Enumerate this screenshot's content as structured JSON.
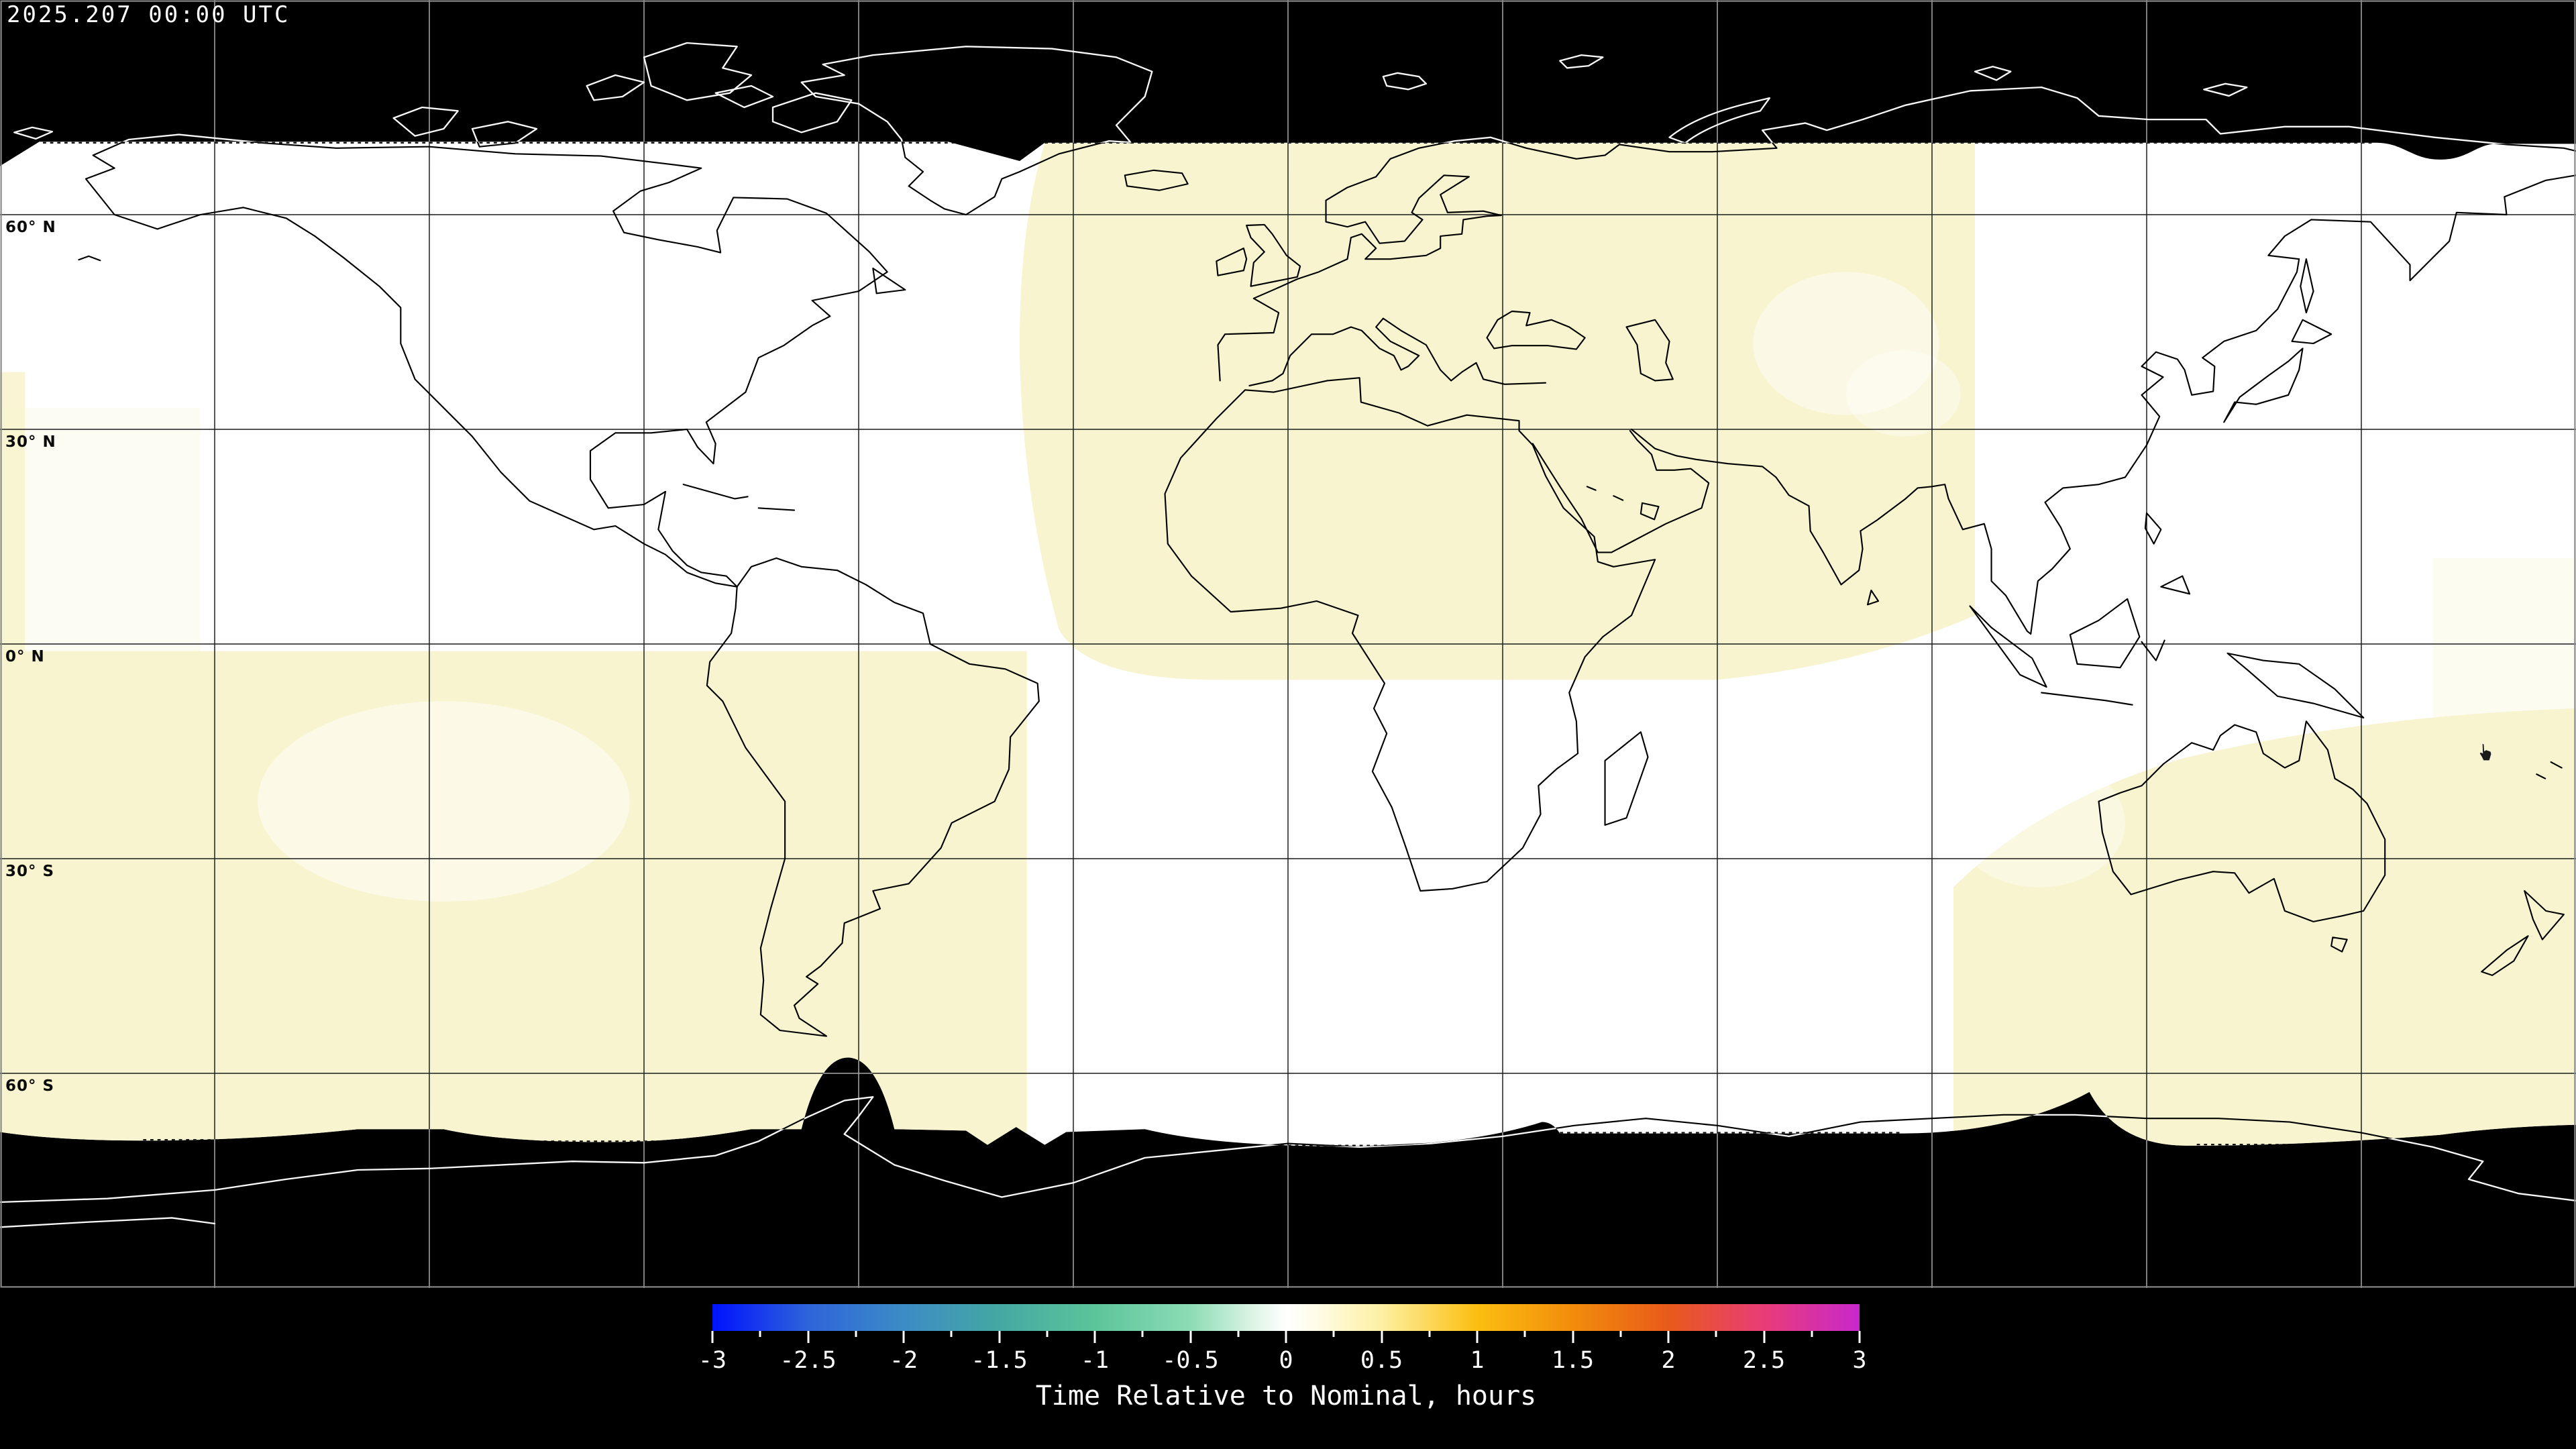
{
  "timestamp": "2025.207 00:00 UTC",
  "map": {
    "projection": "equirectangular world map, 180W-180E / 90N-90S",
    "latitude_labels": [
      {
        "text": "60° N",
        "lat": 60
      },
      {
        "text": "30° N",
        "lat": 30
      },
      {
        "text": "0° N",
        "lat": 0
      },
      {
        "text": "30° S",
        "lat": -30
      },
      {
        "text": "60° S",
        "lat": -60
      }
    ],
    "grid": {
      "lon_spacing_deg": 30,
      "lat_spacing_deg": 30
    },
    "colors": {
      "no_data_background": "#000000",
      "data_white": "#ffffff",
      "data_pale_yellow": "#f8f4cf",
      "coastline_on_data": "#000000",
      "coastline_on_nodata": "#f8f8f8",
      "frame": "#8a8a8a"
    }
  },
  "colorbar": {
    "title": "Time Relative to Nominal, hours",
    "min": -3,
    "max": 3,
    "major_tick_step": 0.5,
    "minor_tick_step": 0.25,
    "tick_labels": [
      "-3",
      "-2.5",
      "-2",
      "-1.5",
      "-1",
      "-0.5",
      "0",
      "0.5",
      "1",
      "1.5",
      "2",
      "2.5",
      "3"
    ],
    "gradient_stops": [
      {
        "value": -3.0,
        "color": "#0012ff"
      },
      {
        "value": -2.5,
        "color": "#2e64da"
      },
      {
        "value": -2.0,
        "color": "#3c8cc6"
      },
      {
        "value": -1.5,
        "color": "#44a8a2"
      },
      {
        "value": -1.0,
        "color": "#5cc49a"
      },
      {
        "value": -0.5,
        "color": "#8cdcb4"
      },
      {
        "value": -0.15,
        "color": "#e2f5e8"
      },
      {
        "value": 0.0,
        "color": "#ffffff"
      },
      {
        "value": 0.15,
        "color": "#fffce8"
      },
      {
        "value": 0.5,
        "color": "#fdf0a2"
      },
      {
        "value": 1.0,
        "color": "#fbbe10"
      },
      {
        "value": 1.5,
        "color": "#f28c0c"
      },
      {
        "value": 2.0,
        "color": "#e85a1a"
      },
      {
        "value": 2.5,
        "color": "#e83c78"
      },
      {
        "value": 3.0,
        "color": "#c828cc"
      }
    ]
  },
  "chart_data": {
    "type": "heatmap",
    "title": "Time Relative to Nominal, hours",
    "value_range": [
      -3,
      3
    ],
    "units": "hours",
    "regions": [
      {
        "name": "Americas and central/east Pacific mid-latitudes",
        "approx_value": 0.0
      },
      {
        "name": "Europe, North Africa, western Asia (lon -36..+96, equator..72N)",
        "approx_value": 0.3
      },
      {
        "name": "Far-west Pacific strip (lon -180..-176, 40N..equator)",
        "approx_value": 0.3
      },
      {
        "name": "Southern hemisphere west (lon -180..-36, equator..68S)",
        "approx_value": 0.3
      },
      {
        "name": "Australia / SW Pacific (lon 95..180, 10S..68S)",
        "approx_value": 0.25
      },
      {
        "name": "East Asia / NW Pacific north of equator",
        "approx_value": 0.0
      },
      {
        "name": "Polar caps (north of ~70N, south of ~68S)",
        "approx_value": null,
        "note": "no data, black"
      }
    ]
  }
}
